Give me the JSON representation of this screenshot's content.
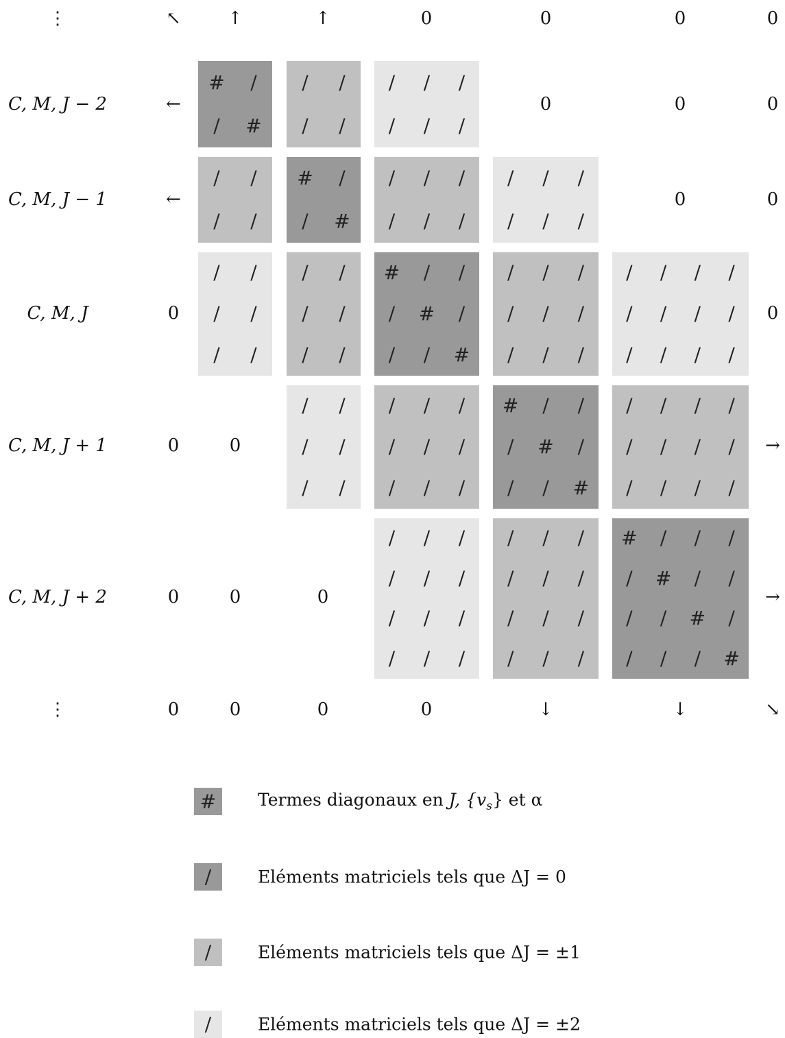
{
  "rows": [
    {
      "key": "top",
      "label": "⋮",
      "cells": [
        "↖",
        "↑",
        "↑",
        "0",
        "0",
        "0",
        "0"
      ]
    },
    {
      "key": "jm2",
      "label": "C, M, J − 2",
      "cells": [
        "←",
        "",
        "",
        "",
        "0",
        "0",
        "0"
      ]
    },
    {
      "key": "jm1",
      "label": "C, M, J − 1",
      "cells": [
        "←",
        "",
        "",
        "",
        "",
        "0",
        "0"
      ]
    },
    {
      "key": "j",
      "label": "C, M, J",
      "cells": [
        "0",
        "",
        "",
        "",
        "",
        "",
        "0"
      ]
    },
    {
      "key": "jp1",
      "label": "C, M, J + 1",
      "cells": [
        "0",
        "0",
        "",
        "",
        "",
        "",
        "→"
      ]
    },
    {
      "key": "jp2",
      "label": "C, M, J + 2",
      "cells": [
        "0",
        "0",
        "0",
        "",
        "",
        "",
        "→"
      ]
    },
    {
      "key": "bottom",
      "label": "⋮",
      "cells": [
        "0",
        "0",
        "0",
        "0",
        "↓",
        "↓",
        "↘"
      ]
    }
  ],
  "symbols": {
    "diagonal": "#",
    "off": "/"
  },
  "legend": [
    {
      "symbol": "#",
      "shade": "d0",
      "text_pre": "Termes diagonaux en ",
      "text_math": "J, {v",
      "text_sub": "s",
      "text_post_math": "}",
      "text_end": " et α"
    },
    {
      "symbol": "/",
      "shade": "d0",
      "text": "Eléments matriciels tels que ΔJ = 0"
    },
    {
      "symbol": "/",
      "shade": "d1",
      "text": "Eléments matriciels tels que ΔJ = ±1"
    },
    {
      "symbol": "/",
      "shade": "d2",
      "text": "Eléments matriciels tels que ΔJ = ±2"
    }
  ],
  "colors": {
    "delta0": "#999999",
    "delta1": "#c0c0c0",
    "delta2": "#e6e6e6"
  }
}
